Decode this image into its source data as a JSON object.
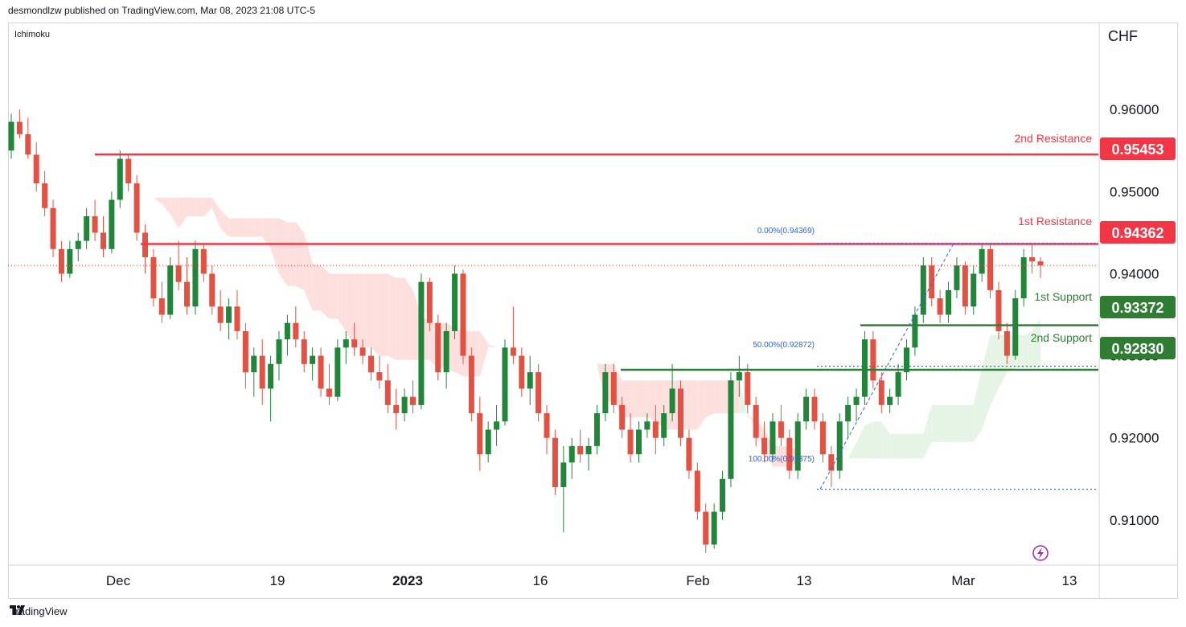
{
  "header": {
    "published": "desmondlzw published on TradingView.com, Mar 08, 2023 21:08 UTC-5"
  },
  "footer": {
    "brand": "TradingView",
    "logo": "tradingview-logo-icon"
  },
  "colors": {
    "up": "#22863a",
    "down": "#e25141",
    "resistance": "#f23645",
    "support": "#2e7d32",
    "fib": "#2962ff",
    "cloud_bear": "#fde0de",
    "cloud_bull": "#e6f4e6",
    "price_line": "#e25141"
  },
  "chart_data": {
    "type": "candlestick",
    "symbol_currency": "CHF",
    "indicator": "Ichimoku",
    "ylim": [
      0.9045,
      0.9705
    ],
    "y_ticks": [
      "0.96000",
      "0.95000",
      "0.94000",
      "0.93000",
      "0.92000",
      "0.91000"
    ],
    "x_ticks": [
      "Dec",
      "19",
      "2023",
      "16",
      "Feb",
      "13",
      "Mar",
      "13"
    ],
    "levels": [
      {
        "name": "2nd Resistance",
        "value": 0.95453,
        "label": "0.95453",
        "kind": "resistance"
      },
      {
        "name": "1st Resistance",
        "value": 0.94362,
        "label": "0.94362",
        "kind": "resistance"
      },
      {
        "name": "1st Support",
        "value": 0.93372,
        "label": "0.93372",
        "kind": "support"
      },
      {
        "name": "2nd Support",
        "value": 0.9283,
        "label": "0.92830",
        "kind": "support"
      }
    ],
    "fibonacci": [
      {
        "label": "0.00%(0.94369)",
        "value": 0.94369
      },
      {
        "label": "50.00%(0.92872)",
        "value": 0.92872
      },
      {
        "label": "100.00%(0.91375)",
        "value": 0.91375
      }
    ],
    "last_price": 0.941,
    "candles": [
      [
        0.955,
        0.9595,
        0.954,
        0.9585
      ],
      [
        0.9585,
        0.96,
        0.9565,
        0.957
      ],
      [
        0.957,
        0.959,
        0.954,
        0.9545
      ],
      [
        0.9545,
        0.956,
        0.95,
        0.951
      ],
      [
        0.951,
        0.9525,
        0.947,
        0.948
      ],
      [
        0.948,
        0.949,
        0.942,
        0.943
      ],
      [
        0.943,
        0.944,
        0.939,
        0.94
      ],
      [
        0.94,
        0.944,
        0.9395,
        0.943
      ],
      [
        0.943,
        0.945,
        0.9415,
        0.944
      ],
      [
        0.944,
        0.948,
        0.943,
        0.947
      ],
      [
        0.947,
        0.949,
        0.944,
        0.945
      ],
      [
        0.945,
        0.947,
        0.942,
        0.943
      ],
      [
        0.943,
        0.95,
        0.9425,
        0.949
      ],
      [
        0.949,
        0.955,
        0.948,
        0.954
      ],
      [
        0.954,
        0.9545,
        0.95,
        0.951
      ],
      [
        0.951,
        0.952,
        0.944,
        0.945
      ],
      [
        0.945,
        0.946,
        0.94,
        0.942
      ],
      [
        0.942,
        0.943,
        0.936,
        0.937
      ],
      [
        0.937,
        0.939,
        0.934,
        0.935
      ],
      [
        0.935,
        0.942,
        0.9345,
        0.941
      ],
      [
        0.941,
        0.944,
        0.938,
        0.939
      ],
      [
        0.939,
        0.942,
        0.935,
        0.936
      ],
      [
        0.936,
        0.944,
        0.935,
        0.943
      ],
      [
        0.943,
        0.9435,
        0.939,
        0.94
      ],
      [
        0.94,
        0.941,
        0.935,
        0.936
      ],
      [
        0.936,
        0.938,
        0.933,
        0.934
      ],
      [
        0.934,
        0.937,
        0.932,
        0.936
      ],
      [
        0.936,
        0.938,
        0.932,
        0.933
      ],
      [
        0.933,
        0.934,
        0.926,
        0.928
      ],
      [
        0.928,
        0.931,
        0.925,
        0.93
      ],
      [
        0.93,
        0.932,
        0.924,
        0.926
      ],
      [
        0.926,
        0.93,
        0.922,
        0.929
      ],
      [
        0.929,
        0.933,
        0.927,
        0.932
      ],
      [
        0.932,
        0.935,
        0.93,
        0.934
      ],
      [
        0.934,
        0.936,
        0.931,
        0.932
      ],
      [
        0.932,
        0.933,
        0.928,
        0.929
      ],
      [
        0.929,
        0.931,
        0.927,
        0.93
      ],
      [
        0.93,
        0.931,
        0.925,
        0.926
      ],
      [
        0.926,
        0.929,
        0.924,
        0.925
      ],
      [
        0.925,
        0.932,
        0.9245,
        0.931
      ],
      [
        0.931,
        0.933,
        0.929,
        0.932
      ],
      [
        0.932,
        0.934,
        0.93,
        0.931
      ],
      [
        0.931,
        0.932,
        0.929,
        0.93
      ],
      [
        0.93,
        0.931,
        0.927,
        0.928
      ],
      [
        0.928,
        0.93,
        0.926,
        0.927
      ],
      [
        0.927,
        0.929,
        0.923,
        0.924
      ],
      [
        0.924,
        0.926,
        0.921,
        0.923
      ],
      [
        0.923,
        0.926,
        0.922,
        0.925
      ],
      [
        0.925,
        0.927,
        0.923,
        0.924
      ],
      [
        0.924,
        0.94,
        0.9235,
        0.939
      ],
      [
        0.939,
        0.9395,
        0.933,
        0.934
      ],
      [
        0.934,
        0.935,
        0.927,
        0.928
      ],
      [
        0.928,
        0.934,
        0.926,
        0.933
      ],
      [
        0.933,
        0.941,
        0.932,
        0.94
      ],
      [
        0.94,
        0.9405,
        0.929,
        0.93
      ],
      [
        0.93,
        0.931,
        0.922,
        0.923
      ],
      [
        0.923,
        0.925,
        0.916,
        0.918
      ],
      [
        0.918,
        0.922,
        0.917,
        0.921
      ],
      [
        0.921,
        0.924,
        0.919,
        0.922
      ],
      [
        0.922,
        0.932,
        0.9215,
        0.931
      ],
      [
        0.931,
        0.936,
        0.929,
        0.93
      ],
      [
        0.93,
        0.931,
        0.925,
        0.926
      ],
      [
        0.926,
        0.93,
        0.924,
        0.928
      ],
      [
        0.928,
        0.929,
        0.922,
        0.923
      ],
      [
        0.923,
        0.924,
        0.918,
        0.92
      ],
      [
        0.92,
        0.921,
        0.913,
        0.914
      ],
      [
        0.914,
        0.919,
        0.9085,
        0.917
      ],
      [
        0.917,
        0.92,
        0.915,
        0.919
      ],
      [
        0.919,
        0.921,
        0.917,
        0.918
      ],
      [
        0.918,
        0.92,
        0.916,
        0.919
      ],
      [
        0.919,
        0.924,
        0.918,
        0.923
      ],
      [
        0.923,
        0.929,
        0.922,
        0.928
      ],
      [
        0.928,
        0.929,
        0.923,
        0.924
      ],
      [
        0.924,
        0.925,
        0.92,
        0.921
      ],
      [
        0.921,
        0.923,
        0.917,
        0.918
      ],
      [
        0.918,
        0.922,
        0.917,
        0.921
      ],
      [
        0.921,
        0.923,
        0.92,
        0.922
      ],
      [
        0.922,
        0.924,
        0.918,
        0.92
      ],
      [
        0.92,
        0.924,
        0.919,
        0.923
      ],
      [
        0.923,
        0.929,
        0.922,
        0.926
      ],
      [
        0.926,
        0.927,
        0.919,
        0.92
      ],
      [
        0.92,
        0.921,
        0.915,
        0.916
      ],
      [
        0.916,
        0.917,
        0.91,
        0.911
      ],
      [
        0.911,
        0.912,
        0.906,
        0.907
      ],
      [
        0.907,
        0.912,
        0.9065,
        0.911
      ],
      [
        0.911,
        0.916,
        0.91,
        0.915
      ],
      [
        0.915,
        0.928,
        0.914,
        0.927
      ],
      [
        0.927,
        0.93,
        0.925,
        0.928
      ],
      [
        0.928,
        0.929,
        0.923,
        0.924
      ],
      [
        0.924,
        0.925,
        0.919,
        0.92
      ],
      [
        0.92,
        0.922,
        0.917,
        0.918
      ],
      [
        0.918,
        0.923,
        0.917,
        0.922
      ],
      [
        0.922,
        0.924,
        0.919,
        0.92
      ],
      [
        0.92,
        0.921,
        0.915,
        0.916
      ],
      [
        0.916,
        0.923,
        0.915,
        0.922
      ],
      [
        0.922,
        0.926,
        0.921,
        0.925
      ],
      [
        0.925,
        0.926,
        0.921,
        0.922
      ],
      [
        0.922,
        0.923,
        0.917,
        0.918
      ],
      [
        0.918,
        0.919,
        0.914,
        0.916
      ],
      [
        0.916,
        0.923,
        0.915,
        0.922
      ],
      [
        0.922,
        0.925,
        0.92,
        0.924
      ],
      [
        0.924,
        0.926,
        0.922,
        0.925
      ],
      [
        0.925,
        0.933,
        0.924,
        0.932
      ],
      [
        0.932,
        0.933,
        0.926,
        0.927
      ],
      [
        0.927,
        0.928,
        0.923,
        0.924
      ],
      [
        0.924,
        0.926,
        0.923,
        0.925
      ],
      [
        0.925,
        0.929,
        0.924,
        0.928
      ],
      [
        0.928,
        0.932,
        0.927,
        0.931
      ],
      [
        0.931,
        0.936,
        0.93,
        0.935
      ],
      [
        0.935,
        0.942,
        0.934,
        0.941
      ],
      [
        0.941,
        0.942,
        0.936,
        0.937
      ],
      [
        0.937,
        0.938,
        0.934,
        0.935
      ],
      [
        0.935,
        0.939,
        0.934,
        0.938
      ],
      [
        0.938,
        0.942,
        0.937,
        0.941
      ],
      [
        0.941,
        0.9415,
        0.935,
        0.936
      ],
      [
        0.936,
        0.941,
        0.935,
        0.94
      ],
      [
        0.94,
        0.9437,
        0.939,
        0.943
      ],
      [
        0.943,
        0.9435,
        0.937,
        0.938
      ],
      [
        0.938,
        0.939,
        0.932,
        0.933
      ],
      [
        0.933,
        0.934,
        0.929,
        0.93
      ],
      [
        0.93,
        0.938,
        0.9295,
        0.937
      ],
      [
        0.937,
        0.943,
        0.936,
        0.942
      ],
      [
        0.942,
        0.9435,
        0.94,
        0.9415
      ],
      [
        0.9415,
        0.942,
        0.9395,
        0.941
      ]
    ]
  },
  "labels": {
    "indicator": "Ichimoku",
    "currency": "CHF",
    "res2_name": "2nd Resistance",
    "res2_value": "0.95453",
    "res1_name": "1st Resistance",
    "res1_value": "0.94362",
    "sup1_name": "1st Support",
    "sup1_value": "0.93372",
    "sup2_name": "2nd Support",
    "sup2_value": "0.92830",
    "fib0": "0.00%(0.94369)",
    "fib50": "50.00%(0.92872)",
    "fib100": "100.00%(0.91375)"
  }
}
